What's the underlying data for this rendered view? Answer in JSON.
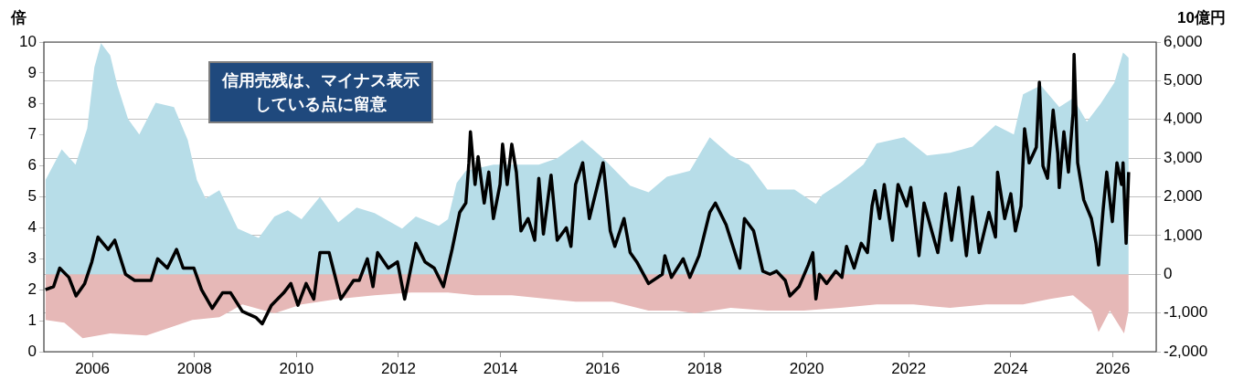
{
  "chart_data": {
    "type": "area",
    "ylabel": "倍",
    "y2label": "10億円",
    "annotations": [
      "信用売残は、マイナス表示している点に留意"
    ],
    "xlim": [
      2005.05,
      2026.85
    ],
    "xticks": [
      2006,
      2008,
      2010,
      2012,
      2014,
      2016,
      2018,
      2020,
      2022,
      2024,
      2026
    ],
    "ylim": [
      0,
      10
    ],
    "yticks": [
      0,
      1,
      2,
      3,
      4,
      5,
      6,
      7,
      8,
      9,
      10
    ],
    "y2lim": [
      -2000,
      6000
    ],
    "y2ticks": [
      {
        "value": -2000,
        "label": "-2,000"
      },
      {
        "value": -1000,
        "label": "-1,000"
      },
      0,
      {
        "value": 1000,
        "label": "1,000"
      },
      {
        "value": 2000,
        "label": "2,000"
      },
      {
        "value": 3000,
        "label": "3,000"
      },
      {
        "value": 4000,
        "label": "4,000"
      },
      {
        "value": 5000,
        "label": "5,000"
      },
      {
        "value": 6000,
        "label": "6,000"
      }
    ],
    "grid": "y",
    "series": [
      {
        "type": "area",
        "color": "#b7dde8",
        "axis": "y2",
        "x": [
          2005.08,
          2005.4,
          2005.67,
          2005.9,
          2006.04,
          2006.17,
          2006.35,
          2006.49,
          2006.7,
          2006.92,
          2007.24,
          2007.6,
          2007.87,
          2008.05,
          2008.22,
          2008.49,
          2008.85,
          2009.26,
          2009.57,
          2009.83,
          2010.1,
          2010.46,
          2010.82,
          2011.18,
          2011.53,
          2012.07,
          2012.34,
          2012.79,
          2012.97,
          2013.14,
          2013.32,
          2013.86,
          2014.22,
          2014.75,
          2015.11,
          2015.6,
          2016.01,
          2016.54,
          2016.9,
          2017.26,
          2017.71,
          2018.1,
          2018.51,
          2018.87,
          2019.23,
          2019.76,
          2020.18,
          2020.3,
          2020.66,
          2021.11,
          2021.37,
          2021.91,
          2022.36,
          2022.81,
          2023.25,
          2023.7,
          2024.06,
          2024.24,
          2024.59,
          2024.95,
          2025.22,
          2025.49,
          2025.76,
          2026.03,
          2026.2,
          2026.31
        ],
        "values": [
          2430,
          3230,
          2830,
          3770,
          5350,
          5970,
          5660,
          4880,
          4010,
          3610,
          4430,
          4320,
          3470,
          2430,
          1960,
          2170,
          1180,
          940,
          1490,
          1650,
          1420,
          2000,
          1340,
          1720,
          1580,
          1180,
          1490,
          1250,
          1420,
          2360,
          2670,
          2830,
          2830,
          2830,
          3000,
          3470,
          3000,
          2290,
          2120,
          2520,
          2670,
          3540,
          3070,
          2830,
          2190,
          2190,
          1820,
          2050,
          2360,
          2830,
          3380,
          3540,
          3070,
          3140,
          3300,
          3850,
          3610,
          4650,
          4880,
          4320,
          4550,
          3940,
          4410,
          4950,
          5730,
          5590
        ]
      },
      {
        "type": "area",
        "color": "#e6b8b7",
        "axis": "y2",
        "x": [
          2005.08,
          2005.45,
          2005.81,
          2006.35,
          2007.06,
          2007.42,
          2007.96,
          2008.49,
          2008.94,
          2009.57,
          2010.1,
          2010.82,
          2011.53,
          2012.25,
          2012.97,
          2013.5,
          2014.22,
          2014.93,
          2015.47,
          2016.19,
          2016.9,
          2017.44,
          2017.8,
          2018.51,
          2019.23,
          2019.94,
          2020.66,
          2021.37,
          2022.09,
          2022.81,
          2023.52,
          2024.24,
          2024.77,
          2025.22,
          2025.58,
          2025.72,
          2025.94,
          2026.22,
          2026.31
        ],
        "values": [
          -1180,
          -1250,
          -1650,
          -1530,
          -1580,
          -1420,
          -1180,
          -1110,
          -780,
          -1010,
          -780,
          -640,
          -540,
          -470,
          -470,
          -540,
          -540,
          -640,
          -710,
          -710,
          -940,
          -940,
          -1010,
          -870,
          -940,
          -940,
          -870,
          -780,
          -780,
          -870,
          -780,
          -780,
          -640,
          -540,
          -940,
          -1490,
          -940,
          -1530,
          -940
        ]
      },
      {
        "type": "line",
        "color": "#000000",
        "axis": "y",
        "x": [
          2005.08,
          2005.24,
          2005.36,
          2005.54,
          2005.68,
          2005.85,
          2005.99,
          2006.11,
          2006.31,
          2006.44,
          2006.65,
          2006.83,
          2007.15,
          2007.28,
          2007.47,
          2007.65,
          2007.78,
          2007.99,
          2008.14,
          2008.35,
          2008.55,
          2008.71,
          2008.94,
          2009.21,
          2009.33,
          2009.51,
          2009.75,
          2009.89,
          2010.03,
          2010.19,
          2010.34,
          2010.46,
          2010.64,
          2010.87,
          2011.12,
          2011.23,
          2011.39,
          2011.5,
          2011.59,
          2011.8,
          2011.98,
          2012.12,
          2012.34,
          2012.52,
          2012.7,
          2012.88,
          2013.05,
          2013.2,
          2013.32,
          2013.38,
          2013.41,
          2013.5,
          2013.56,
          2013.68,
          2013.77,
          2013.86,
          2013.99,
          2014.04,
          2014.13,
          2014.22,
          2014.31,
          2014.4,
          2014.54,
          2014.67,
          2014.75,
          2014.84,
          2014.99,
          2015.11,
          2015.29,
          2015.38,
          2015.47,
          2015.61,
          2015.74,
          2016.01,
          2016.15,
          2016.24,
          2016.42,
          2016.54,
          2016.67,
          2016.9,
          2017.17,
          2017.22,
          2017.35,
          2017.58,
          2017.71,
          2017.89,
          2018.1,
          2018.21,
          2018.42,
          2018.69,
          2018.78,
          2018.96,
          2019.14,
          2019.28,
          2019.41,
          2019.58,
          2019.67,
          2019.85,
          2020.03,
          2020.12,
          2020.18,
          2020.25,
          2020.39,
          2020.57,
          2020.69,
          2020.78,
          2020.93,
          2021.07,
          2021.19,
          2021.28,
          2021.34,
          2021.43,
          2021.52,
          2021.68,
          2021.79,
          2021.96,
          2022.04,
          2022.2,
          2022.3,
          2022.45,
          2022.57,
          2022.72,
          2022.84,
          2022.98,
          2023.13,
          2023.25,
          2023.38,
          2023.57,
          2023.7,
          2023.74,
          2023.88,
          2024.0,
          2024.09,
          2024.2,
          2024.27,
          2024.36,
          2024.5,
          2024.56,
          2024.63,
          2024.72,
          2024.83,
          2024.92,
          2024.95,
          2025.04,
          2025.13,
          2025.22,
          2025.24,
          2025.31,
          2025.43,
          2025.58,
          2025.67,
          2025.72,
          2025.81,
          2025.88,
          2025.99,
          2026.08,
          2026.17,
          2026.2,
          2026.26,
          2026.31
        ],
        "values": [
          2.0,
          2.1,
          2.7,
          2.4,
          1.8,
          2.2,
          2.9,
          3.7,
          3.3,
          3.6,
          2.5,
          2.3,
          2.3,
          3.0,
          2.7,
          3.3,
          2.7,
          2.7,
          2.0,
          1.4,
          1.9,
          1.9,
          1.3,
          1.1,
          0.9,
          1.5,
          1.9,
          2.2,
          1.5,
          2.2,
          1.7,
          3.2,
          3.2,
          1.7,
          2.3,
          2.3,
          3.0,
          2.1,
          3.2,
          2.7,
          2.9,
          1.7,
          3.5,
          2.9,
          2.7,
          2.1,
          3.3,
          4.5,
          4.8,
          6.1,
          7.1,
          5.4,
          6.3,
          4.8,
          5.8,
          4.3,
          5.4,
          6.7,
          5.4,
          6.7,
          5.8,
          3.9,
          4.3,
          3.6,
          5.6,
          3.8,
          5.7,
          3.6,
          4.0,
          3.4,
          5.4,
          6.1,
          4.3,
          6.1,
          3.9,
          3.4,
          4.3,
          3.2,
          2.9,
          2.2,
          2.5,
          3.1,
          2.4,
          3.0,
          2.4,
          3.1,
          4.5,
          4.8,
          4.1,
          2.7,
          4.3,
          3.9,
          2.6,
          2.5,
          2.6,
          2.3,
          1.8,
          2.1,
          2.8,
          3.2,
          1.7,
          2.5,
          2.2,
          2.6,
          2.4,
          3.4,
          2.7,
          3.5,
          3.2,
          4.7,
          5.2,
          4.3,
          5.4,
          3.6,
          5.4,
          4.7,
          5.3,
          3.1,
          4.8,
          3.9,
          3.2,
          5.1,
          3.6,
          5.3,
          3.1,
          5.0,
          3.2,
          4.5,
          3.7,
          5.8,
          4.3,
          5.1,
          3.9,
          4.7,
          7.2,
          6.1,
          6.6,
          8.7,
          6.0,
          5.6,
          7.8,
          6.4,
          5.3,
          7.1,
          5.8,
          7.7,
          9.6,
          6.1,
          4.9,
          4.3,
          3.5,
          2.8,
          4.6,
          5.8,
          4.2,
          6.1,
          5.4,
          6.1,
          3.5,
          5.8
        ]
      }
    ]
  }
}
